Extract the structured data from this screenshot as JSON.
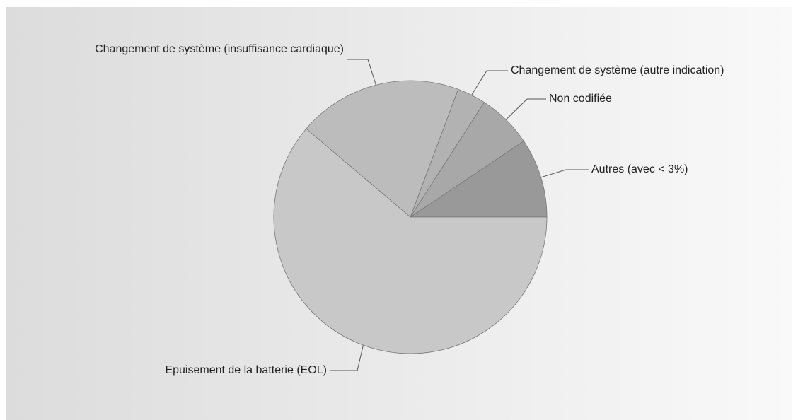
{
  "chart_data": {
    "type": "pie",
    "categories": [
      "Autres (avec < 3%)",
      "Non codifiée",
      "Changement de système (autre indication)",
      "Changement de système (insuffisance cardiaque)",
      "Epuisement de la batterie (EOL)"
    ],
    "values": [
      9.4,
      6.5,
      3.4,
      19.5,
      61.2
    ],
    "colors": [
      "#999999",
      "#a8a8a8",
      "#b2b2b2",
      "#bcbcbc",
      "#c8c8c8"
    ]
  }
}
